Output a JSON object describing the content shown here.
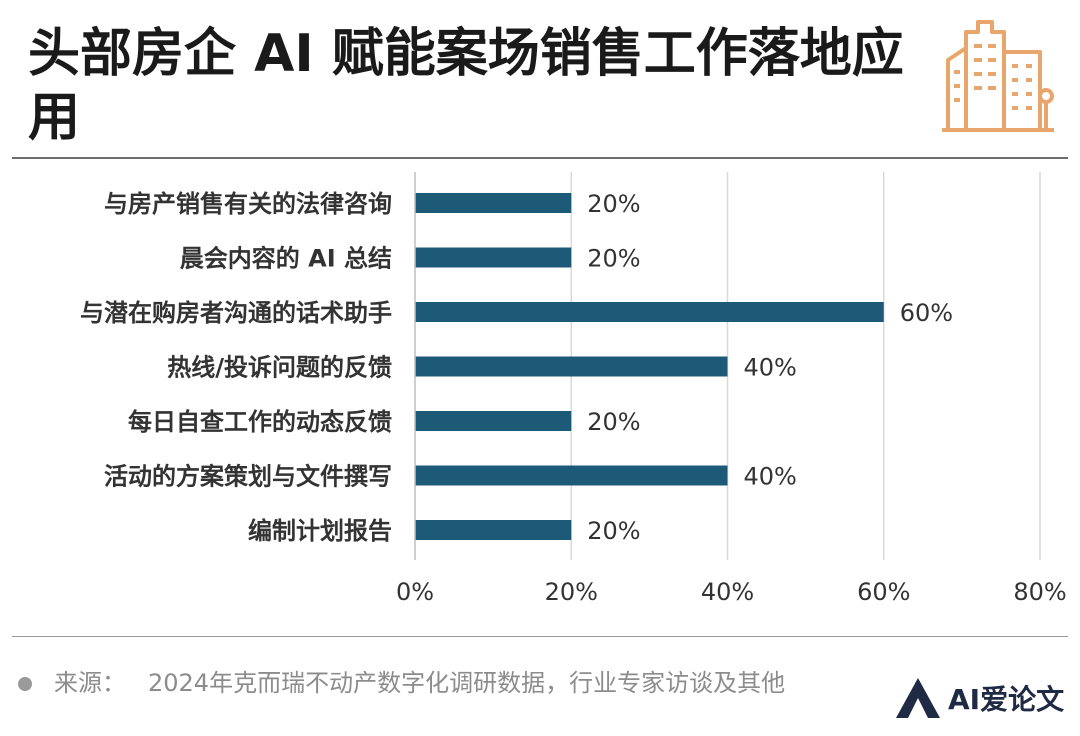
{
  "title": "头部房企 AI 赋能案场销售工作落地应用",
  "source": {
    "label": "来源：",
    "text": "2024年克而瑞不动产数字化调研数据，行业专家访谈及其他"
  },
  "logo": {
    "text": "AI爱论文"
  },
  "colors": {
    "bar": "#1c5a78",
    "grid": "#d9d9d9",
    "label": "#333333",
    "title": "#1a1a1a",
    "icon": "#e8a66c"
  },
  "chart_data": {
    "type": "bar",
    "orientation": "horizontal",
    "categories": [
      "与房产销售有关的法律咨询",
      "晨会内容的 AI 总结",
      "与潜在购房者沟通的话术助手",
      "热线/投诉问题的反馈",
      "每日自查工作的动态反馈",
      "活动的方案策划与文件撰写",
      "编制计划报告"
    ],
    "values": [
      20,
      20,
      60,
      40,
      20,
      40,
      20
    ],
    "data_labels": [
      "20%",
      "20%",
      "60%",
      "40%",
      "20%",
      "40%",
      "20%"
    ],
    "xlim": [
      0,
      80
    ],
    "xticks": [
      0,
      20,
      40,
      60,
      80
    ],
    "xtick_labels": [
      "0%",
      "20%",
      "40%",
      "60%",
      "80%"
    ],
    "grid": true,
    "legend": "none"
  }
}
